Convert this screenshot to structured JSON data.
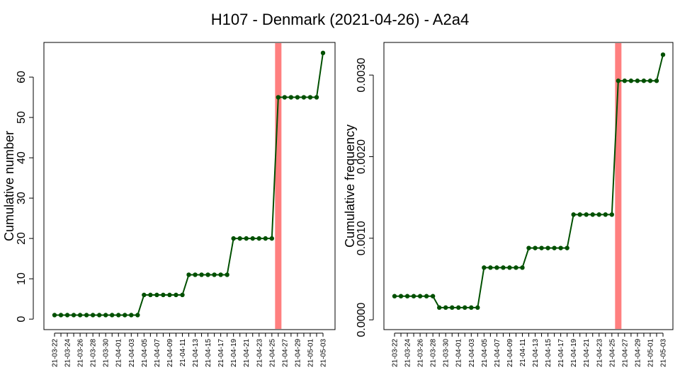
{
  "title": "H107 - Denmark (2021-04-26) - A2a4",
  "colors": {
    "line": "#005000",
    "point": "#005000",
    "marker_band": "#ff7f7f",
    "axis": "#000000"
  },
  "chart_data": [
    {
      "type": "line",
      "xlabel": "",
      "ylabel": "Cumulative number",
      "categories": [
        "21-03-22",
        "21-03-23",
        "21-03-24",
        "21-03-25",
        "21-03-26",
        "21-03-27",
        "21-03-28",
        "21-03-29",
        "21-03-30",
        "21-03-31",
        "21-04-01",
        "21-04-02",
        "21-04-03",
        "21-04-04",
        "21-04-05",
        "21-04-06",
        "21-04-07",
        "21-04-08",
        "21-04-09",
        "21-04-10",
        "21-04-11",
        "21-04-12",
        "21-04-13",
        "21-04-14",
        "21-04-15",
        "21-04-16",
        "21-04-17",
        "21-04-18",
        "21-04-19",
        "21-04-20",
        "21-04-21",
        "21-04-22",
        "21-04-23",
        "21-04-24",
        "21-04-25",
        "21-04-26",
        "21-04-27",
        "21-04-28",
        "21-04-29",
        "21-04-30",
        "21-05-01",
        "21-05-02",
        "21-05-03"
      ],
      "tick_labels": [
        "21-03-22",
        "21-03-24",
        "21-03-26",
        "21-03-28",
        "21-03-30",
        "21-04-01",
        "21-04-03",
        "21-04-05",
        "21-04-07",
        "21-04-09",
        "21-04-11",
        "21-04-13",
        "21-04-15",
        "21-04-17",
        "21-04-19",
        "21-04-21",
        "21-04-23",
        "21-04-25",
        "21-04-27",
        "21-04-29",
        "21-05-01",
        "21-05-03"
      ],
      "points": [
        {
          "x": "21-03-22",
          "y": 1
        },
        {
          "x": "21-03-23",
          "y": 1
        },
        {
          "x": "21-03-24",
          "y": 1
        },
        {
          "x": "21-03-25",
          "y": 1
        },
        {
          "x": "21-03-26",
          "y": 1
        },
        {
          "x": "21-03-27",
          "y": 1
        },
        {
          "x": "21-03-28",
          "y": 1
        },
        {
          "x": "21-03-29",
          "y": 1
        },
        {
          "x": "21-03-30",
          "y": 1
        },
        {
          "x": "21-03-31",
          "y": 1
        },
        {
          "x": "21-04-01",
          "y": 1
        },
        {
          "x": "21-04-02",
          "y": 1
        },
        {
          "x": "21-04-03",
          "y": 1
        },
        {
          "x": "21-04-04",
          "y": 1
        },
        {
          "x": "21-04-05",
          "y": 6
        },
        {
          "x": "21-04-06",
          "y": 6
        },
        {
          "x": "21-04-07",
          "y": 6
        },
        {
          "x": "21-04-08",
          "y": 6
        },
        {
          "x": "21-04-09",
          "y": 6
        },
        {
          "x": "21-04-10",
          "y": 6
        },
        {
          "x": "21-04-11",
          "y": 6
        },
        {
          "x": "21-04-12",
          "y": 11
        },
        {
          "x": "21-04-13",
          "y": 11
        },
        {
          "x": "21-04-14",
          "y": 11
        },
        {
          "x": "21-04-15",
          "y": 11
        },
        {
          "x": "21-04-16",
          "y": 11
        },
        {
          "x": "21-04-17",
          "y": 11
        },
        {
          "x": "21-04-18",
          "y": 11
        },
        {
          "x": "21-04-19",
          "y": 20
        },
        {
          "x": "21-04-20",
          "y": 20
        },
        {
          "x": "21-04-21",
          "y": 20
        },
        {
          "x": "21-04-22",
          "y": 20
        },
        {
          "x": "21-04-23",
          "y": 20
        },
        {
          "x": "21-04-24",
          "y": 20
        },
        {
          "x": "21-04-25",
          "y": 20
        },
        {
          "x": "21-04-26",
          "y": 55
        },
        {
          "x": "21-04-27",
          "y": 55
        },
        {
          "x": "21-04-28",
          "y": 55
        },
        {
          "x": "21-04-29",
          "y": 55
        },
        {
          "x": "21-04-30",
          "y": 55
        },
        {
          "x": "21-05-01",
          "y": 55
        },
        {
          "x": "21-05-02",
          "y": 55
        },
        {
          "x": "21-05-03",
          "y": 66
        }
      ],
      "marker_date": "21-04-26",
      "yticks": [
        0,
        10,
        20,
        30,
        40,
        50,
        60
      ],
      "ylim": [
        -2.6,
        68.6
      ],
      "grid": false,
      "legend": "none"
    },
    {
      "type": "line",
      "xlabel": "",
      "ylabel": "Cumulative frequency",
      "categories": [
        "21-03-22",
        "21-03-23",
        "21-03-24",
        "21-03-25",
        "21-03-26",
        "21-03-27",
        "21-03-28",
        "21-03-29",
        "21-03-30",
        "21-03-31",
        "21-04-01",
        "21-04-02",
        "21-04-03",
        "21-04-04",
        "21-04-05",
        "21-04-06",
        "21-04-07",
        "21-04-08",
        "21-04-09",
        "21-04-10",
        "21-04-11",
        "21-04-12",
        "21-04-13",
        "21-04-14",
        "21-04-15",
        "21-04-16",
        "21-04-17",
        "21-04-18",
        "21-04-19",
        "21-04-20",
        "21-04-21",
        "21-04-22",
        "21-04-23",
        "21-04-24",
        "21-04-25",
        "21-04-26",
        "21-04-27",
        "21-04-28",
        "21-04-29",
        "21-04-30",
        "21-05-01",
        "21-05-02",
        "21-05-03"
      ],
      "tick_labels": [
        "21-03-22",
        "21-03-24",
        "21-03-26",
        "21-03-28",
        "21-03-30",
        "21-04-01",
        "21-04-03",
        "21-04-05",
        "21-04-07",
        "21-04-09",
        "21-04-11",
        "21-04-13",
        "21-04-15",
        "21-04-17",
        "21-04-19",
        "21-04-21",
        "21-04-23",
        "21-04-25",
        "21-04-27",
        "21-04-29",
        "21-05-01",
        "21-05-03"
      ],
      "points": [
        {
          "x": "21-03-22",
          "y": 0.00029
        },
        {
          "x": "21-03-23",
          "y": 0.00029
        },
        {
          "x": "21-03-24",
          "y": 0.00029
        },
        {
          "x": "21-03-25",
          "y": 0.00029
        },
        {
          "x": "21-03-26",
          "y": 0.00029
        },
        {
          "x": "21-03-27",
          "y": 0.00029
        },
        {
          "x": "21-03-28",
          "y": 0.00029
        },
        {
          "x": "21-03-29",
          "y": 0.00015
        },
        {
          "x": "21-03-30",
          "y": 0.00015
        },
        {
          "x": "21-03-31",
          "y": 0.00015
        },
        {
          "x": "21-04-01",
          "y": 0.00015
        },
        {
          "x": "21-04-02",
          "y": 0.00015
        },
        {
          "x": "21-04-03",
          "y": 0.00015
        },
        {
          "x": "21-04-04",
          "y": 0.00015
        },
        {
          "x": "21-04-05",
          "y": 0.00064
        },
        {
          "x": "21-04-06",
          "y": 0.00064
        },
        {
          "x": "21-04-07",
          "y": 0.00064
        },
        {
          "x": "21-04-08",
          "y": 0.00064
        },
        {
          "x": "21-04-09",
          "y": 0.00064
        },
        {
          "x": "21-04-10",
          "y": 0.00064
        },
        {
          "x": "21-04-11",
          "y": 0.00064
        },
        {
          "x": "21-04-12",
          "y": 0.00088
        },
        {
          "x": "21-04-13",
          "y": 0.00088
        },
        {
          "x": "21-04-14",
          "y": 0.00088
        },
        {
          "x": "21-04-15",
          "y": 0.00088
        },
        {
          "x": "21-04-16",
          "y": 0.00088
        },
        {
          "x": "21-04-17",
          "y": 0.00088
        },
        {
          "x": "21-04-18",
          "y": 0.00088
        },
        {
          "x": "21-04-19",
          "y": 0.00129
        },
        {
          "x": "21-04-20",
          "y": 0.00129
        },
        {
          "x": "21-04-21",
          "y": 0.00129
        },
        {
          "x": "21-04-22",
          "y": 0.00129
        },
        {
          "x": "21-04-23",
          "y": 0.00129
        },
        {
          "x": "21-04-24",
          "y": 0.00129
        },
        {
          "x": "21-04-25",
          "y": 0.00129
        },
        {
          "x": "21-04-26",
          "y": 0.00293
        },
        {
          "x": "21-04-27",
          "y": 0.00293
        },
        {
          "x": "21-04-28",
          "y": 0.00293
        },
        {
          "x": "21-04-29",
          "y": 0.00293
        },
        {
          "x": "21-04-30",
          "y": 0.00293
        },
        {
          "x": "21-05-01",
          "y": 0.00293
        },
        {
          "x": "21-05-02",
          "y": 0.00293
        },
        {
          "x": "21-05-03",
          "y": 0.00325
        }
      ],
      "marker_date": "21-04-26",
      "yticks": [
        0,
        0.001,
        0.002,
        0.003
      ],
      "ytick_labels": [
        "0.0000",
        "0.0010",
        "0.0020",
        "0.0030"
      ],
      "ylim": [
        -0.00012,
        0.0034
      ],
      "grid": false,
      "legend": "none"
    }
  ]
}
